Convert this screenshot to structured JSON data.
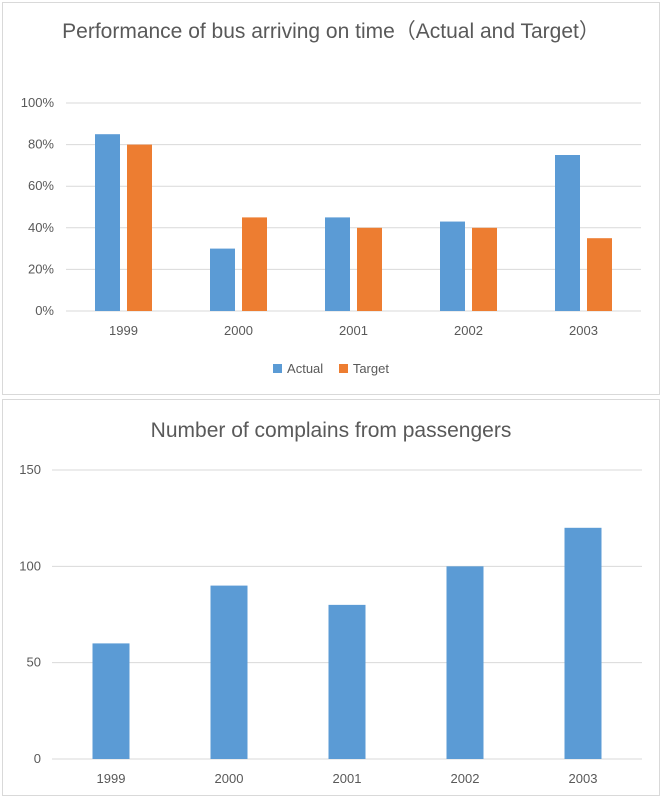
{
  "chart_data": [
    {
      "type": "bar",
      "title": "Performance of bus arriving on time（Actual and Target）",
      "categories": [
        "1999",
        "2000",
        "2001",
        "2002",
        "2003"
      ],
      "series": [
        {
          "name": "Actual",
          "values": [
            85,
            30,
            45,
            43,
            75
          ],
          "color": "#5b9bd5"
        },
        {
          "name": "Target",
          "values": [
            80,
            45,
            40,
            40,
            35
          ],
          "color": "#ed7d31"
        }
      ],
      "yticks": [
        "0%",
        "20%",
        "40%",
        "60%",
        "80%",
        "100%"
      ],
      "ylim": [
        0,
        100
      ],
      "legend": "bottom",
      "grid": true
    },
    {
      "type": "bar",
      "title": "Number of complains from passengers",
      "categories": [
        "1999",
        "2000",
        "2001",
        "2002",
        "2003"
      ],
      "series": [
        {
          "values": [
            60,
            90,
            80,
            100,
            120
          ],
          "color": "#5b9bd5"
        }
      ],
      "yticks": [
        "0",
        "50",
        "100",
        "150"
      ],
      "ylim": [
        0,
        150
      ],
      "grid": true
    }
  ]
}
